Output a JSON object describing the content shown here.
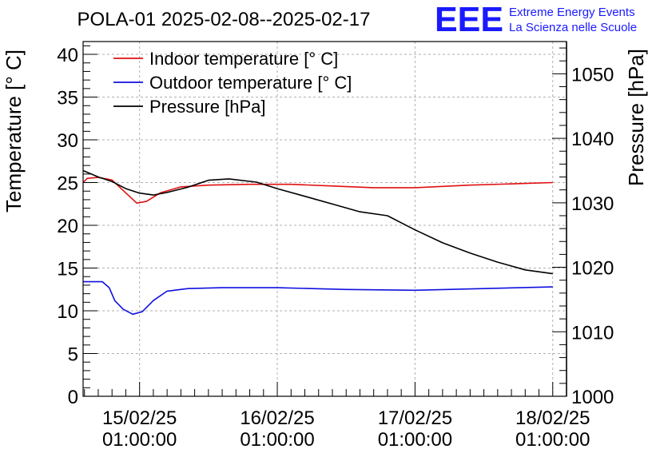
{
  "chart_data": {
    "type": "line",
    "title": "POLA-01 2025-02-08--2025-02-17",
    "ylabel": "Temperature [° C]",
    "y2label": "Pressure [hPa]",
    "ylim": [
      0,
      41.5
    ],
    "y2lim": [
      1000,
      1055
    ],
    "yticks": [
      0,
      5,
      10,
      15,
      20,
      25,
      30,
      35,
      40
    ],
    "y2ticks": [
      1000,
      1010,
      1020,
      1030,
      1040,
      1050
    ],
    "xlim": [
      -0.41,
      3.1
    ],
    "xticks": [
      {
        "x": 0,
        "date": "15/02/25",
        "time": "01:00:00"
      },
      {
        "x": 1,
        "date": "16/02/25",
        "time": "01:00:00"
      },
      {
        "x": 2,
        "date": "17/02/25",
        "time": "01:00:00"
      },
      {
        "x": 3,
        "date": "18/02/25",
        "time": "01:00:00"
      }
    ],
    "grid": true,
    "legend_position": "top-left",
    "series": [
      {
        "name": "Indoor temperature [° C]",
        "axis": "left",
        "color": "#e01010",
        "x": [
          -0.41,
          -0.38,
          -0.3,
          -0.2,
          -0.1,
          -0.02,
          0.05,
          0.15,
          0.3,
          0.5,
          0.8,
          1.1,
          1.4,
          1.7,
          2.0,
          2.4,
          2.8,
          3.0
        ],
        "y": [
          25.0,
          25.5,
          25.6,
          25.3,
          23.8,
          22.6,
          22.8,
          23.8,
          24.5,
          24.7,
          24.8,
          24.8,
          24.6,
          24.4,
          24.4,
          24.7,
          24.9,
          25.0
        ]
      },
      {
        "name": "Outdoor temperature [° C]",
        "axis": "left",
        "color": "#1010e0",
        "x": [
          -0.41,
          -0.27,
          -0.22,
          -0.18,
          -0.12,
          -0.05,
          0.02,
          0.1,
          0.2,
          0.35,
          0.6,
          1.0,
          1.5,
          2.0,
          2.5,
          3.0
        ],
        "y": [
          13.4,
          13.4,
          12.7,
          11.2,
          10.2,
          9.6,
          9.9,
          11.2,
          12.3,
          12.6,
          12.7,
          12.7,
          12.5,
          12.4,
          12.6,
          12.8
        ]
      },
      {
        "name": "Pressure [hPa]",
        "axis": "right",
        "color": "#000000",
        "x": [
          -0.41,
          -0.3,
          -0.2,
          -0.1,
          0.0,
          0.1,
          0.2,
          0.35,
          0.5,
          0.65,
          0.85,
          1.0,
          1.2,
          1.4,
          1.6,
          1.8,
          2.0,
          2.2,
          2.4,
          2.6,
          2.8,
          3.0
        ],
        "y": [
          1035.0,
          1034.0,
          1033.3,
          1032.2,
          1031.5,
          1031.2,
          1031.6,
          1032.4,
          1033.5,
          1033.7,
          1033.2,
          1032.2,
          1031.0,
          1029.8,
          1028.6,
          1028.0,
          1025.8,
          1023.8,
          1022.2,
          1020.8,
          1019.6,
          1019.0
        ]
      }
    ]
  },
  "logo": {
    "mark": "EEE",
    "line1": "Extreme Energy Events",
    "line2": "La Scienza nelle Scuole"
  }
}
